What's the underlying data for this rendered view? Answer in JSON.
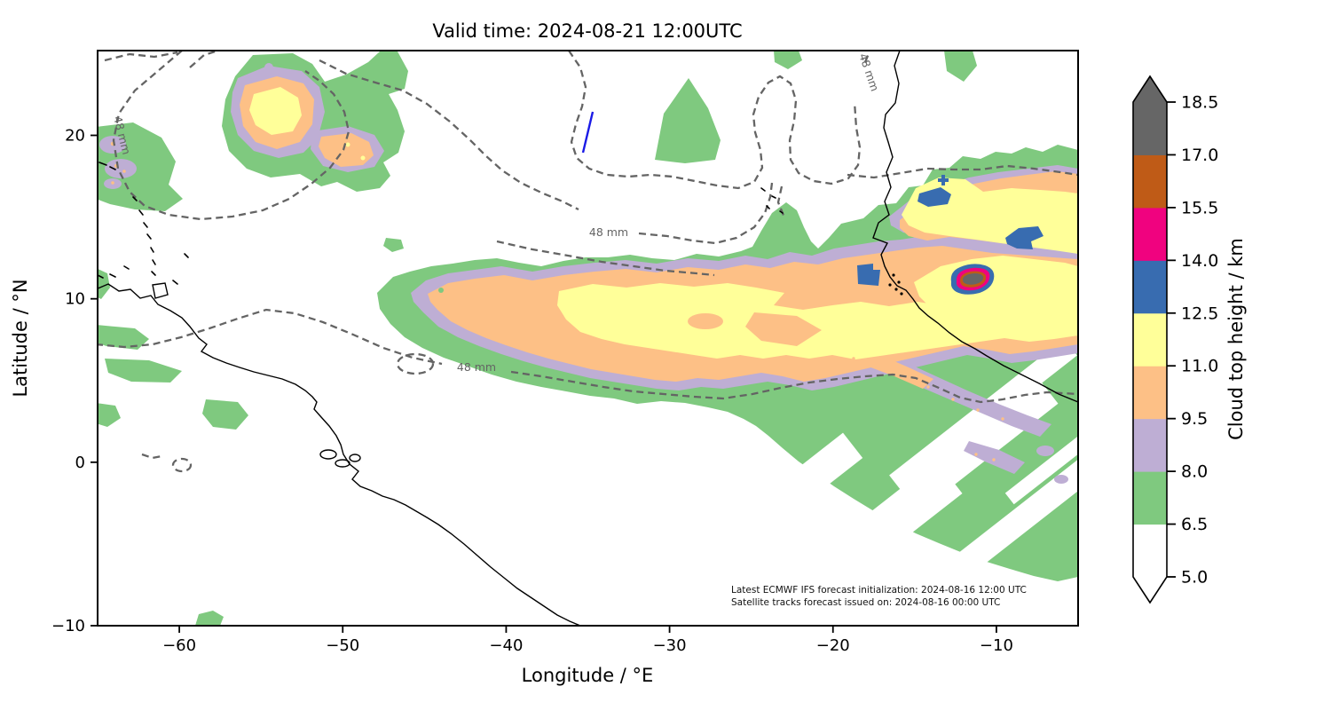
{
  "figure": {
    "title": "Valid time: 2024-08-21 12:00UTC"
  },
  "axes": {
    "xlabel": "Longitude / °E",
    "ylabel": "Latitude / °N",
    "x_ticks": [
      {
        "lon": -60,
        "label": "−60"
      },
      {
        "lon": -50,
        "label": "−50"
      },
      {
        "lon": -40,
        "label": "−40"
      },
      {
        "lon": -30,
        "label": "−30"
      },
      {
        "lon": -20,
        "label": "−20"
      },
      {
        "lon": -10,
        "label": "−10"
      }
    ],
    "y_ticks": [
      {
        "lat": 20,
        "label": "20"
      },
      {
        "lat": 10,
        "label": "10"
      },
      {
        "lat": 0,
        "label": "0"
      },
      {
        "lat": -10,
        "label": "−10"
      }
    ]
  },
  "colorbar": {
    "label": "Cloud top height / km",
    "levels": [
      5.0,
      6.5,
      8.0,
      9.5,
      11.0,
      12.5,
      14.0,
      15.5,
      17.0,
      18.5
    ],
    "tick_labels": [
      "5.0",
      "6.5",
      "8.0",
      "9.5",
      "11.0",
      "12.5",
      "14.0",
      "15.5",
      "17.0",
      "18.5"
    ],
    "colors": [
      "#ffffff",
      "#7fc97f",
      "#beaed4",
      "#fdc086",
      "#ffff99",
      "#386cb0",
      "#f0027f",
      "#bf5b17",
      "#666666"
    ],
    "under_color": "#ffffff",
    "over_color": "#666666"
  },
  "contour": {
    "label": "48 mm",
    "value_mm": 48
  },
  "annotation": {
    "line1": "Latest ECMWF IFS forecast initialization: 2024-08-16 12:00 UTC",
    "line2": "Satellite tracks forecast issued on: 2024-08-16 00:00 UTC"
  },
  "chart_data": {
    "type": "heatmap",
    "title": "Valid time: 2024-08-21 12:00UTC",
    "xlabel": "Longitude / °E",
    "ylabel": "Latitude / °N",
    "xlim": [
      -65,
      -5
    ],
    "ylim": [
      -10,
      25.2
    ],
    "quantity": "Cloud top height / km",
    "color_levels_km": [
      5.0,
      6.5,
      8.0,
      9.5,
      11.0,
      12.5,
      14.0,
      15.5,
      17.0,
      18.5
    ],
    "level_colors": [
      "#ffffff",
      "#7fc97f",
      "#beaed4",
      "#fdc086",
      "#ffff99",
      "#386cb0",
      "#f0027f",
      "#bf5b17",
      "#666666"
    ],
    "precipitation_contour": {
      "value_mm": 48,
      "label": "48 mm",
      "style": "gray dashed"
    },
    "satellite_track_segment": {
      "color": "#1a1ae6",
      "lon_lat": [
        [
          -34.7,
          21.4
        ],
        [
          -35.3,
          18.9
        ]
      ]
    },
    "features": [
      {
        "name": "NW Atlantic convective cluster",
        "center_lon": -55,
        "center_lat": 22,
        "max_cloud_top_km": 12.5
      },
      {
        "name": "Secondary cell SE of cluster",
        "center_lon": -51.5,
        "center_lat": 20.5,
        "max_cloud_top_km": 11.0
      },
      {
        "name": "Caribbean / Lesser Antilles patches",
        "lon_range": [
          -65,
          -61
        ],
        "lat_range": [
          10,
          20
        ],
        "max_cloud_top_km": 9.5
      },
      {
        "name": "ITCZ cloud band",
        "lon_range": [
          -48,
          -5
        ],
        "lat_range": [
          4,
          14
        ],
        "max_cloud_top_km": 12.5
      },
      {
        "name": "West Africa intense storm cell",
        "center_lon": -12,
        "center_lat": 11.5,
        "max_cloud_top_km": 18.5
      },
      {
        "name": "High cells 12.5-14 km",
        "points_lon_lat": [
          [
            -13.5,
            16.4
          ],
          [
            -8.2,
            13.8
          ],
          [
            -17.4,
            11.6
          ]
        ]
      },
      {
        "name": "NE system off West Africa",
        "lon_range": [
          -16,
          -5
        ],
        "lat_range": [
          9,
          19
        ],
        "max_cloud_top_km": 12.5
      },
      {
        "name": "SE broken stratiform area (diagonal gaps)",
        "lon_range": [
          -18,
          -5
        ],
        "lat_range": [
          -3,
          8
        ],
        "max_cloud_top_km": 8.0
      }
    ],
    "annotations": [
      "Latest ECMWF IFS forecast initialization: 2024-08-16 12:00 UTC",
      "Satellite tracks forecast issued on: 2024-08-16 00:00 UTC"
    ],
    "legend_position": "right colorbar with over/under arrows",
    "grid": false
  }
}
